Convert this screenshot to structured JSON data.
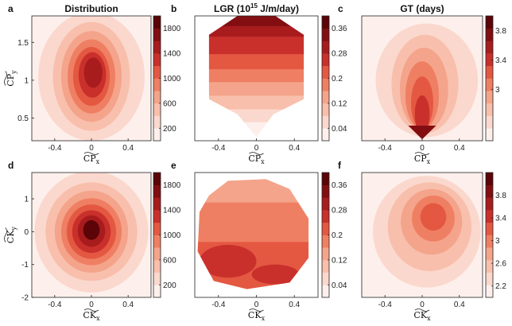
{
  "figure": {
    "colors": {
      "c0": "#fdf0ec",
      "c1": "#fbd8cd",
      "c2": "#f8bfac",
      "c3": "#f4a48b",
      "c4": "#ef7f63",
      "c5": "#e45842",
      "c6": "#c9302b",
      "c7": "#a81c1e",
      "c8": "#820e12",
      "c9": "#5c0407"
    }
  },
  "chart_data": [
    {
      "id": "a",
      "letter": "a",
      "type": "heatmap",
      "title": "Distribution",
      "xlabel": "CP",
      "xlabel_sub": "x",
      "ylabel": "CP",
      "ylabel_sub": "y",
      "xlim": [
        -0.65,
        0.65
      ],
      "ylim": [
        0.2,
        1.85
      ],
      "xticks": [
        {
          "v": -0.4,
          "t": "-0.4"
        },
        {
          "v": 0,
          "t": "0"
        },
        {
          "v": 0.4,
          "t": "0.4"
        }
      ],
      "yticks": [
        {
          "v": 0.5,
          "t": "0.5"
        },
        {
          "v": 1,
          "t": "1"
        },
        {
          "v": 1.5,
          "t": "1.5"
        }
      ],
      "colorbar": {
        "min": 0,
        "max": 2000,
        "ticks": [
          {
            "v": 200,
            "t": "200"
          },
          {
            "v": 600,
            "t": "600"
          },
          {
            "v": 1000,
            "t": "1000"
          },
          {
            "v": 1400,
            "t": "1400"
          },
          {
            "v": 1800,
            "t": "1800"
          }
        ]
      },
      "levels": [
        {
          "cx": 0,
          "cy": 1.05,
          "rx": 0.58,
          "ry": 0.85,
          "c": "c1"
        },
        {
          "cx": 0,
          "cy": 1.05,
          "rx": 0.42,
          "ry": 0.72,
          "c": "c2"
        },
        {
          "cx": 0,
          "cy": 1.05,
          "rx": 0.33,
          "ry": 0.6,
          "c": "c3"
        },
        {
          "cx": 0,
          "cy": 1.05,
          "rx": 0.26,
          "ry": 0.49,
          "c": "c4"
        },
        {
          "cx": 0,
          "cy": 1.05,
          "rx": 0.2,
          "ry": 0.39,
          "c": "c5"
        },
        {
          "cx": 0.01,
          "cy": 1.07,
          "rx": 0.15,
          "ry": 0.3,
          "c": "c6"
        },
        {
          "cx": 0.02,
          "cy": 1.1,
          "rx": 0.1,
          "ry": 0.2,
          "c": "c7"
        }
      ]
    },
    {
      "id": "b",
      "letter": "b",
      "type": "heatmap",
      "title": "LGR (10",
      "title_sup": "15",
      "title_tail": " J/m/day)",
      "xlabel": "CP",
      "xlabel_sub": "x",
      "ylabel": "",
      "ylabel_sub": "",
      "xlim": [
        -0.65,
        0.65
      ],
      "ylim": [
        0.2,
        1.85
      ],
      "xticks": [
        {
          "v": -0.4,
          "t": "-0.4"
        },
        {
          "v": 0,
          "t": "0"
        },
        {
          "v": 0.4,
          "t": "0.4"
        }
      ],
      "yticks": [],
      "colorbar": {
        "min": 0,
        "max": 0.4,
        "ticks": [
          {
            "v": 0.04,
            "t": "0.04"
          },
          {
            "v": 0.12,
            "t": "0.12"
          },
          {
            "v": 0.2,
            "t": "0.2"
          },
          {
            "v": 0.28,
            "t": "0.28"
          },
          {
            "v": 0.36,
            "t": "0.36"
          }
        ]
      },
      "domain": [
        [
          -0.2,
          1.85
        ],
        [
          0.2,
          1.85
        ],
        [
          0.5,
          1.6
        ],
        [
          0.5,
          0.75
        ],
        [
          0.18,
          0.55
        ],
        [
          0,
          0.25
        ],
        [
          -0.2,
          0.55
        ],
        [
          -0.5,
          0.75
        ],
        [
          -0.5,
          1.6
        ]
      ],
      "bands": [
        {
          "y": 0.2,
          "c": "c0"
        },
        {
          "y": 0.45,
          "c": "c1"
        },
        {
          "y": 0.62,
          "c": "c2"
        },
        {
          "y": 0.8,
          "c": "c3"
        },
        {
          "y": 0.98,
          "c": "c4"
        },
        {
          "y": 1.15,
          "c": "c5"
        },
        {
          "y": 1.35,
          "c": "c6"
        },
        {
          "y": 1.58,
          "c": "c7"
        },
        {
          "y": 1.72,
          "c": "c8"
        }
      ]
    },
    {
      "id": "c",
      "letter": "c",
      "type": "heatmap",
      "title": "GT (days)",
      "xlabel": "CP",
      "xlabel_sub": "x",
      "ylabel": "",
      "ylabel_sub": "",
      "xlim": [
        -0.65,
        0.65
      ],
      "ylim": [
        0.2,
        1.85
      ],
      "xticks": [
        {
          "v": -0.4,
          "t": "-0.4"
        },
        {
          "v": 0,
          "t": "0"
        },
        {
          "v": 0.4,
          "t": "0.4"
        }
      ],
      "yticks": [],
      "colorbar": {
        "min": 2.3,
        "max": 4.0,
        "ticks": [
          {
            "v": 3.0,
            "t": "3"
          },
          {
            "v": 3.4,
            "t": "3.4"
          },
          {
            "v": 3.8,
            "t": "3.8"
          }
        ]
      },
      "levels": [
        {
          "cx": 0.05,
          "cy": 1.0,
          "rx": 0.55,
          "ry": 0.75,
          "c": "c1"
        },
        {
          "cx": 0.03,
          "cy": 0.95,
          "rx": 0.36,
          "ry": 0.65,
          "c": "c2"
        },
        {
          "cx": 0.02,
          "cy": 0.88,
          "rx": 0.26,
          "ry": 0.55,
          "c": "c3"
        },
        {
          "cx": 0.0,
          "cy": 0.8,
          "rx": 0.18,
          "ry": 0.45,
          "c": "c4"
        },
        {
          "cx": 0.0,
          "cy": 0.7,
          "rx": 0.12,
          "ry": 0.35,
          "c": "c5"
        },
        {
          "cx": 0.0,
          "cy": 0.55,
          "rx": 0.08,
          "ry": 0.25,
          "c": "c6"
        }
      ],
      "tip": [
        [
          -0.15,
          0.4
        ],
        [
          0.15,
          0.4
        ],
        [
          0,
          0.22
        ]
      ]
    },
    {
      "id": "d",
      "letter": "d",
      "type": "heatmap",
      "title": "",
      "xlabel": "CK",
      "xlabel_sub": "x",
      "ylabel": "CK",
      "ylabel_sub": "y",
      "xlim": [
        -0.65,
        0.65
      ],
      "ylim": [
        -2.0,
        1.8
      ],
      "xticks": [
        {
          "v": -0.4,
          "t": "-0.4"
        },
        {
          "v": 0,
          "t": "0"
        },
        {
          "v": 0.4,
          "t": "0.4"
        }
      ],
      "yticks": [
        {
          "v": -2,
          "t": "-2"
        },
        {
          "v": -1,
          "t": "-1"
        },
        {
          "v": 0,
          "t": "0"
        },
        {
          "v": 1,
          "t": "1"
        }
      ],
      "colorbar": {
        "min": 0,
        "max": 2000,
        "ticks": [
          {
            "v": 200,
            "t": "200"
          },
          {
            "v": 600,
            "t": "600"
          },
          {
            "v": 1000,
            "t": "1000"
          },
          {
            "v": 1400,
            "t": "1400"
          },
          {
            "v": 1800,
            "t": "1800"
          }
        ]
      },
      "levels": [
        {
          "cx": 0,
          "cy": 0,
          "rx": 0.62,
          "ry": 1.85,
          "c": "c1"
        },
        {
          "cx": 0,
          "cy": 0,
          "rx": 0.5,
          "ry": 1.5,
          "c": "c2"
        },
        {
          "cx": 0,
          "cy": 0,
          "rx": 0.4,
          "ry": 1.25,
          "c": "c3"
        },
        {
          "cx": 0,
          "cy": 0,
          "rx": 0.33,
          "ry": 1.02,
          "c": "c4"
        },
        {
          "cx": 0,
          "cy": 0,
          "rx": 0.27,
          "ry": 0.83,
          "c": "c5"
        },
        {
          "cx": 0,
          "cy": 0,
          "rx": 0.21,
          "ry": 0.65,
          "c": "c6"
        },
        {
          "cx": 0,
          "cy": 0.02,
          "rx": 0.15,
          "ry": 0.48,
          "c": "c7"
        },
        {
          "cx": 0,
          "cy": 0.05,
          "rx": 0.09,
          "ry": 0.3,
          "c": "c9"
        }
      ]
    },
    {
      "id": "e",
      "letter": "e",
      "type": "heatmap",
      "title": "",
      "xlabel": "CK",
      "xlabel_sub": "x",
      "ylabel": "",
      "ylabel_sub": "",
      "xlim": [
        -0.65,
        0.65
      ],
      "ylim": [
        -2.0,
        1.8
      ],
      "xticks": [
        {
          "v": -0.4,
          "t": "-0.4"
        },
        {
          "v": 0,
          "t": "0"
        },
        {
          "v": 0.4,
          "t": "0.4"
        }
      ],
      "yticks": [],
      "colorbar": {
        "min": 0,
        "max": 0.4,
        "ticks": [
          {
            "v": 0.04,
            "t": "0.04"
          },
          {
            "v": 0.12,
            "t": "0.12"
          },
          {
            "v": 0.2,
            "t": "0.2"
          },
          {
            "v": 0.28,
            "t": "0.28"
          },
          {
            "v": 0.36,
            "t": "0.36"
          }
        ]
      },
      "domain": [
        [
          -0.3,
          1.55
        ],
        [
          0.1,
          1.6
        ],
        [
          0.35,
          1.3
        ],
        [
          0.55,
          0.4
        ],
        [
          0.55,
          -0.8
        ],
        [
          0.35,
          -1.55
        ],
        [
          -0.1,
          -1.75
        ],
        [
          -0.45,
          -1.5
        ],
        [
          -0.62,
          -0.6
        ],
        [
          -0.6,
          0.6
        ],
        [
          -0.5,
          1.1
        ]
      ],
      "bands": [
        {
          "y": -2.0,
          "c": "c5"
        },
        {
          "y": -0.3,
          "c": "c4"
        },
        {
          "y": 0.9,
          "c": "c3"
        }
      ],
      "patches": [
        {
          "cx": -0.3,
          "cy": -0.9,
          "rx": 0.3,
          "ry": 0.5,
          "c": "c6"
        },
        {
          "cx": 0.2,
          "cy": -1.3,
          "rx": 0.25,
          "ry": 0.3,
          "c": "c6"
        }
      ]
    },
    {
      "id": "f",
      "letter": "f",
      "type": "heatmap",
      "title": "",
      "xlabel": "CK",
      "xlabel_sub": "x",
      "ylabel": "",
      "ylabel_sub": "",
      "xlim": [
        -0.65,
        0.65
      ],
      "ylim": [
        -2.0,
        1.8
      ],
      "xticks": [
        {
          "v": -0.4,
          "t": "-0.4"
        },
        {
          "v": 0,
          "t": "0"
        },
        {
          "v": 0.4,
          "t": "0.4"
        }
      ],
      "yticks": [],
      "colorbar": {
        "min": 2.0,
        "max": 4.2,
        "ticks": [
          {
            "v": 2.2,
            "t": "2.2"
          },
          {
            "v": 2.6,
            "t": "2.6"
          },
          {
            "v": 3.0,
            "t": "3"
          },
          {
            "v": 3.4,
            "t": "3.4"
          },
          {
            "v": 3.8,
            "t": "3.8"
          }
        ]
      },
      "levels": [
        {
          "cx": 0.05,
          "cy": 0,
          "rx": 0.58,
          "ry": 1.7,
          "c": "c1"
        },
        {
          "cx": 0.08,
          "cy": 0.15,
          "rx": 0.45,
          "ry": 1.35,
          "c": "c2"
        },
        {
          "cx": 0.1,
          "cy": 0.3,
          "rx": 0.33,
          "ry": 1.0,
          "c": "c3"
        },
        {
          "cx": 0.12,
          "cy": 0.4,
          "rx": 0.23,
          "ry": 0.7,
          "c": "c4"
        },
        {
          "cx": 0.12,
          "cy": 0.45,
          "rx": 0.14,
          "ry": 0.42,
          "c": "c5"
        }
      ]
    }
  ]
}
